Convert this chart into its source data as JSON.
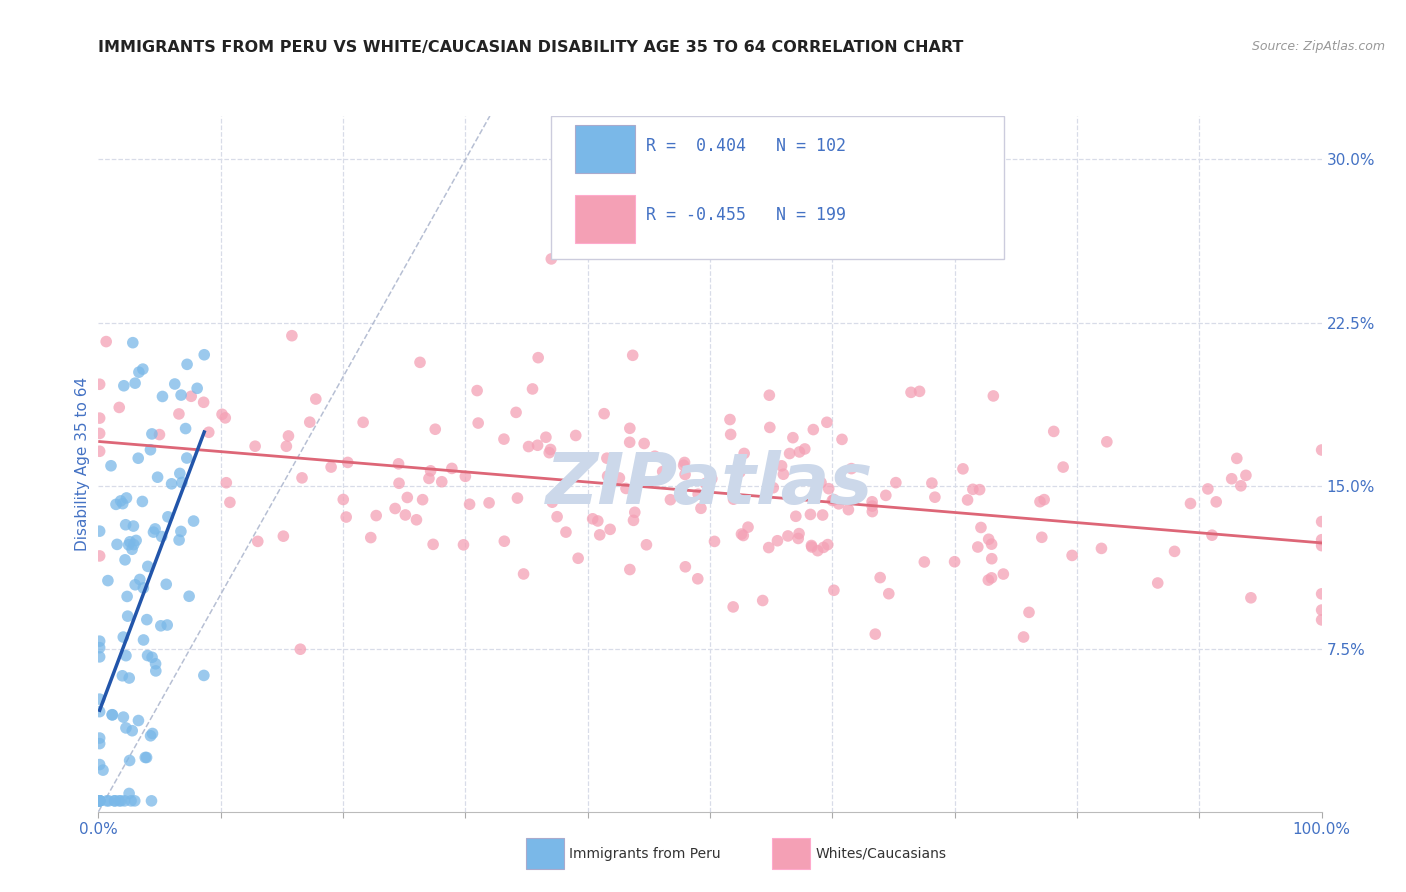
{
  "title": "IMMIGRANTS FROM PERU VS WHITE/CAUCASIAN DISABILITY AGE 35 TO 64 CORRELATION CHART",
  "source_text": "Source: ZipAtlas.com",
  "ylabel": "Disability Age 35 to 64",
  "xlim": [
    0.0,
    1.0
  ],
  "ylim": [
    0.0,
    0.32
  ],
  "ytick_positions": [
    0.075,
    0.15,
    0.225,
    0.3
  ],
  "yticklabels": [
    "7.5%",
    "15.0%",
    "22.5%",
    "30.0%"
  ],
  "blue_R": 0.404,
  "blue_N": 102,
  "pink_R": -0.455,
  "pink_N": 199,
  "blue_color": "#7ab8e8",
  "pink_color": "#f4a0b5",
  "blue_trend_color": "#2255aa",
  "pink_trend_color": "#dd6677",
  "diagonal_color": "#aab4cc",
  "watermark": "ZIPatlas",
  "watermark_color": "#ccd8ea",
  "title_color": "#222222",
  "axis_label_color": "#4472c4",
  "tick_color": "#4472c4",
  "legend_text_color": "#222222",
  "legend_val_color": "#4472c4",
  "grid_color": "#d8dce8",
  "bottom_legend_blue": "Immigrants from Peru",
  "bottom_legend_pink": "Whites/Caucasians"
}
